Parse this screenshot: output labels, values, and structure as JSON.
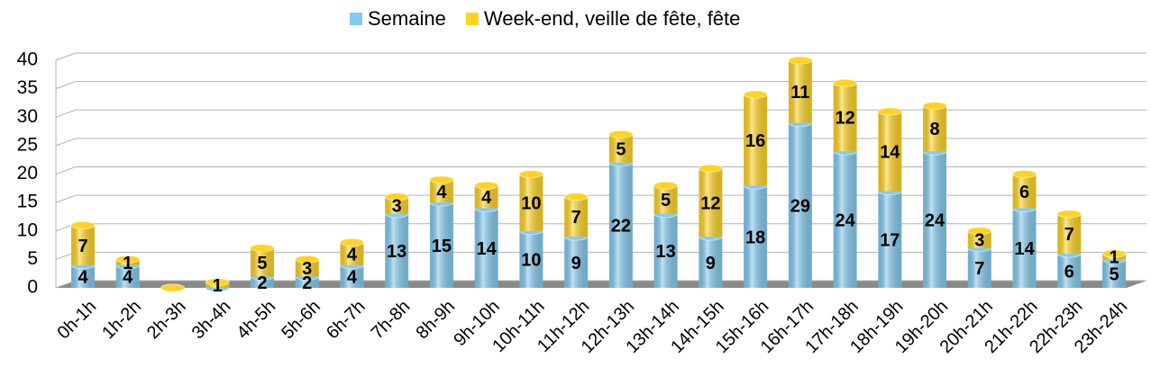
{
  "chart_data": {
    "type": "bar",
    "stacked": true,
    "categories": [
      "0h-1h",
      "1h-2h",
      "2h-3h",
      "3h-4h",
      "4h-5h",
      "5h-6h",
      "6h-7h",
      "7h-8h",
      "8h-9h",
      "9h-10h",
      "10h-11h",
      "11h-12h",
      "12h-13h",
      "13h-14h",
      "14h-15h",
      "15h-16h",
      "16h-17h",
      "17h-18h",
      "18h-19h",
      "19h-20h",
      "20h-21h",
      "21h-22h",
      "22h-23h",
      "23h-24h"
    ],
    "series": [
      {
        "name": "Semaine",
        "color": "#83caf0",
        "values": [
          4,
          4,
          0,
          0,
          2,
          2,
          4,
          13,
          15,
          14,
          10,
          9,
          22,
          13,
          9,
          18,
          29,
          24,
          17,
          24,
          7,
          14,
          6,
          5
        ]
      },
      {
        "name": "Week-end, veille de fête, fête",
        "color": "#ffd320",
        "values": [
          7,
          1,
          0,
          1,
          5,
          3,
          4,
          3,
          4,
          4,
          10,
          7,
          5,
          5,
          12,
          16,
          11,
          12,
          14,
          8,
          3,
          6,
          7,
          1
        ]
      }
    ],
    "ylim": [
      0,
      40
    ],
    "yticks": [
      0,
      5,
      10,
      15,
      20,
      25,
      30,
      35,
      40
    ],
    "grid": true,
    "legend": "top"
  }
}
